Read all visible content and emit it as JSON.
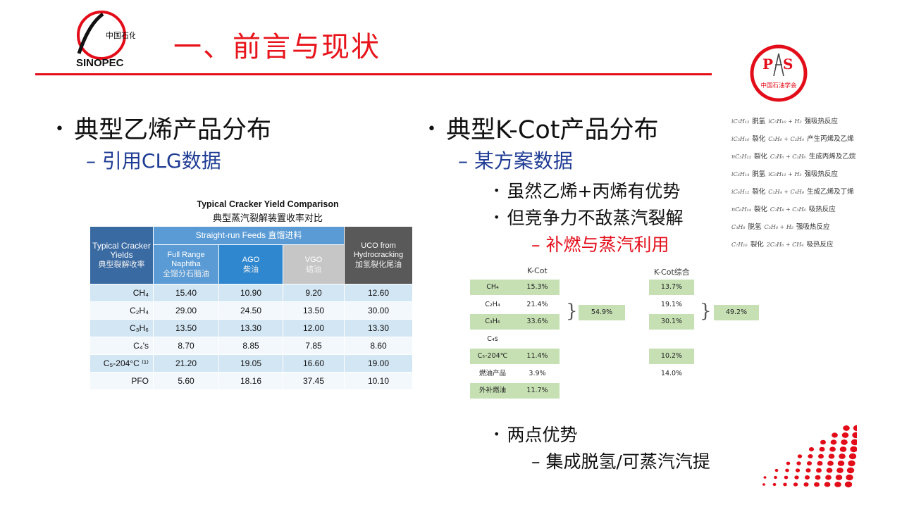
{
  "header": {
    "title": "一、前言与现状",
    "logo_text": "中国石化",
    "logo_brand": "SINOPEC",
    "society_logo_text": "中国石油学会",
    "society_letters": "PS",
    "accent": "#e30d1a"
  },
  "left": {
    "bullet": "典型乙烯产品分布",
    "sub": "引用CLG数据",
    "table_title_en": "Typical Cracker Yield Comparison",
    "table_title_zh": "典型蒸汽裂解装置收率对比",
    "head": {
      "typical_en": "Typical Cracker Yields",
      "typical_zh": "典型裂解收率",
      "srf": "Straight-run Feeds 直馏进料",
      "fr_en": "Full Range Naphtha",
      "fr_zh": "全馏分石脑油",
      "ago_en": "AGO",
      "ago_zh": "柴油",
      "vgo_en": "VGO",
      "vgo_zh": "蜡油",
      "uco_en": "UCO from Hydrocracking",
      "uco_zh": "加氢裂化尾油"
    },
    "rows": [
      {
        "label": "CH₄",
        "values": [
          "15.40",
          "10.90",
          "9.20",
          "12.60"
        ]
      },
      {
        "label": "C₂H₄",
        "values": [
          "29.00",
          "24.50",
          "13.50",
          "30.00"
        ]
      },
      {
        "label": "C₃H₆",
        "values": [
          "13.50",
          "13.30",
          "12.00",
          "13.30"
        ]
      },
      {
        "label": "C₄'s",
        "values": [
          "8.70",
          "8.85",
          "7.85",
          "8.60"
        ]
      },
      {
        "label": "C₅-204°C ⁽¹⁾",
        "values": [
          "21.20",
          "19.05",
          "16.60",
          "19.00"
        ]
      },
      {
        "label": "PFO",
        "values": [
          "5.60",
          "18.16",
          "37.45",
          "10.10"
        ]
      }
    ]
  },
  "right": {
    "bullet": "典型K-Cot产品分布",
    "sub": "某方案数据",
    "points": [
      "虽然乙烯+丙烯有优势",
      "但竞争力不敌蒸汽裂解"
    ],
    "subpoint": "补燃与蒸汽利用",
    "kcot": {
      "col1": "K-Cot",
      "col2": "K-Cot综合",
      "labels": [
        "CH₄",
        "C₂H₄",
        "C₃H₆",
        "C₄s",
        "C₅-204℃",
        "燃油产品",
        "外补燃油"
      ],
      "v1": [
        "15.3%",
        "21.4%",
        "33.6%",
        "",
        "11.4%",
        "3.9%",
        "11.7%"
      ],
      "v2": [
        "13.7%",
        "19.1%",
        "30.1%",
        "",
        "10.2%",
        "14.0%",
        ""
      ],
      "sum1": "54.9%",
      "sum2": "49.2%"
    },
    "point2": "两点优势",
    "subpoint2": "集成脱氢/可蒸汽汽提"
  },
  "reactions": [
    {
      "f": "iC₅H₁₂",
      "a": "脱氢",
      "r": "iC₅H₁₀ + H₂",
      "t": "强吸热反应"
    },
    {
      "f": "iC₅H₁₀",
      "a": "裂化",
      "r": "C₃H₆ + C₂H₄",
      "t": "产生丙烯及乙烯"
    },
    {
      "f": "nC₅H₁₂",
      "a": "裂化",
      "r": "C₃H₆ + C₂H₆",
      "t": "生成丙烯及乙烷"
    },
    {
      "f": "iC₆H₁₄",
      "a": "脱氢",
      "r": "iC₆H₁₂ + H₂",
      "t": "强吸热反应"
    },
    {
      "f": "iC₆H₁₂",
      "a": "裂化",
      "r": "C₂H₄ + C₄H₈",
      "t": "生成乙烯及丁烯"
    },
    {
      "f": "nC₆H₁₄",
      "a": "裂化",
      "r": "C₃H₈ + C₃H₆",
      "t": "吸热反应"
    },
    {
      "f": "C₃H₈",
      "a": "脱氢",
      "r": "C₃H₆ + H₂",
      "t": "强吸热反应"
    },
    {
      "f": "C₇H₁₆",
      "a": "裂化",
      "r": "2C₃H₆ + CH₄",
      "t": "吸热反应"
    }
  ]
}
